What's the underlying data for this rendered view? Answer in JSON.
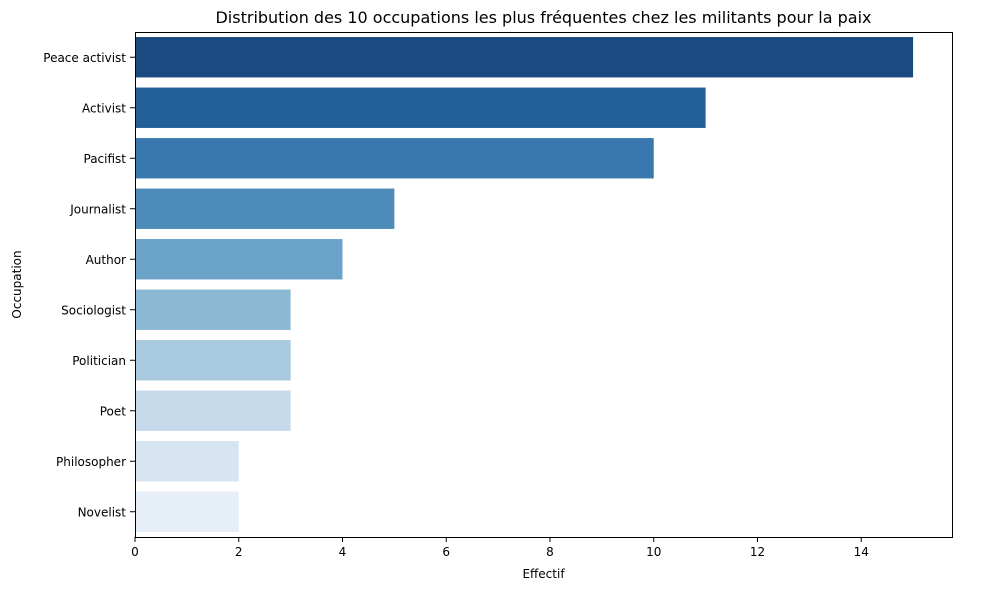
{
  "chart_data": {
    "type": "bar",
    "orientation": "horizontal",
    "title": "Distribution des 10 occupations les plus fréquentes chez les militants pour la paix",
    "xlabel": "Effectif",
    "ylabel": "Occupation",
    "categories": [
      "Peace activist",
      "Activist",
      "Pacifist",
      "Journalist",
      "Author",
      "Sociologist",
      "Politician",
      "Poet",
      "Philosopher",
      "Novelist"
    ],
    "values": [
      15,
      11,
      10,
      5,
      4,
      3,
      3,
      3,
      2,
      2
    ],
    "xlim": [
      0,
      15.75
    ],
    "xticks": [
      0,
      2,
      4,
      6,
      8,
      10,
      12,
      14
    ],
    "colors": [
      "#1a4a80",
      "#23609a",
      "#3878ae",
      "#4e8cb9",
      "#6aa2c8",
      "#8bb8d3",
      "#a8c9de",
      "#c6d9ea",
      "#d7e4f1",
      "#e6eef7"
    ],
    "grid": false,
    "legend": "none"
  }
}
